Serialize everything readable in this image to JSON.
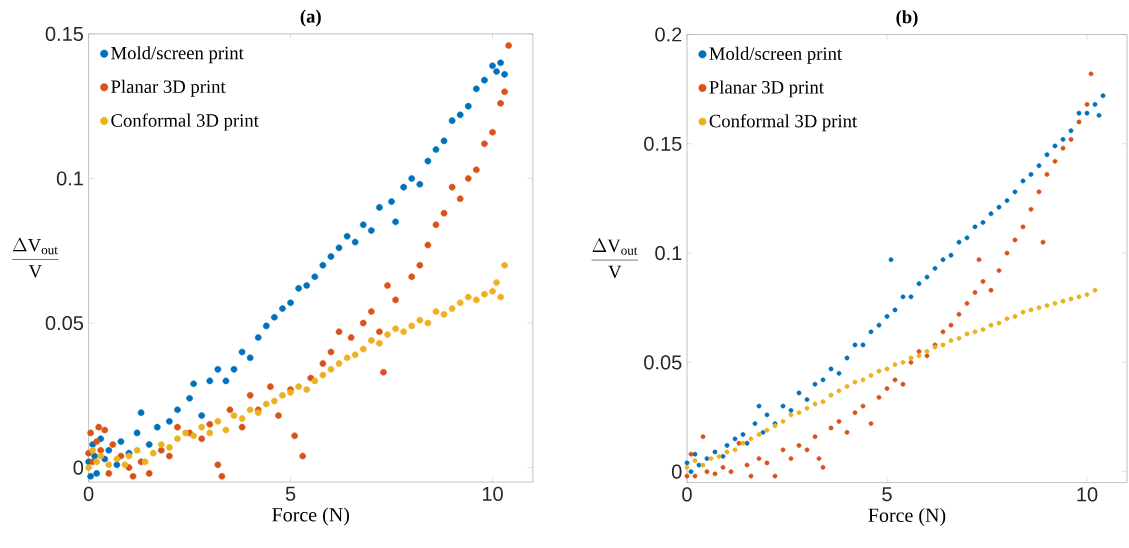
{
  "chart_data": [
    {
      "type": "scatter",
      "title": "(a)",
      "xlabel": "Force (N)",
      "ylabel": "\\frac{\\Delta \\mathrm{V}_{\\mathrm{out}}}{\\mathrm{V}}",
      "xlim": [
        0,
        11
      ],
      "ylim": [
        -0.005,
        0.15
      ],
      "xticks": [
        0,
        5,
        10
      ],
      "yticks": [
        0,
        0.05,
        0.1,
        0.15
      ],
      "legend": "top left",
      "marker": "circle",
      "series": [
        {
          "name": "Mold/screen print",
          "color": "#0072bd",
          "x": [
            0.0,
            0.05,
            0.1,
            0.15,
            0.2,
            0.3,
            0.4,
            0.5,
            0.7,
            0.8,
            1.0,
            1.2,
            1.3,
            1.5,
            1.7,
            2.0,
            2.2,
            2.5,
            2.6,
            2.8,
            3.0,
            3.2,
            3.4,
            3.6,
            3.8,
            4.0,
            4.2,
            4.4,
            4.6,
            4.8,
            5.0,
            5.2,
            5.4,
            5.6,
            5.8,
            6.0,
            6.2,
            6.4,
            6.6,
            6.8,
            7.0,
            7.2,
            7.5,
            7.6,
            7.8,
            8.0,
            8.2,
            8.4,
            8.6,
            8.8,
            9.0,
            9.2,
            9.4,
            9.6,
            9.8,
            10.0,
            10.1,
            10.2,
            10.3
          ],
          "values": [
            0.002,
            -0.003,
            0.008,
            0.004,
            -0.002,
            0.01,
            0.003,
            0.006,
            0.001,
            0.009,
            0.005,
            0.012,
            0.019,
            0.008,
            0.014,
            0.016,
            0.02,
            0.024,
            0.029,
            0.018,
            0.03,
            0.034,
            0.03,
            0.034,
            0.04,
            0.038,
            0.045,
            0.049,
            0.052,
            0.055,
            0.057,
            0.062,
            0.063,
            0.066,
            0.07,
            0.073,
            0.076,
            0.08,
            0.078,
            0.084,
            0.082,
            0.09,
            0.092,
            0.085,
            0.097,
            0.1,
            0.098,
            0.106,
            0.11,
            0.113,
            0.12,
            0.122,
            0.125,
            0.131,
            0.134,
            0.139,
            0.137,
            0.14,
            0.136
          ]
        },
        {
          "name": "Planar 3D print",
          "color": "#d95319",
          "x": [
            0.0,
            0.05,
            0.1,
            0.2,
            0.25,
            0.3,
            0.4,
            0.5,
            0.6,
            0.8,
            1.0,
            1.1,
            1.3,
            1.5,
            1.8,
            2.0,
            2.2,
            2.5,
            2.8,
            3.0,
            3.2,
            3.3,
            3.5,
            3.8,
            4.0,
            4.2,
            4.5,
            4.7,
            5.0,
            5.1,
            5.3,
            5.5,
            5.8,
            6.0,
            6.2,
            6.5,
            6.8,
            7.0,
            7.2,
            7.3,
            7.4,
            7.6,
            8.0,
            8.2,
            8.4,
            8.6,
            8.8,
            9.0,
            9.2,
            9.4,
            9.6,
            9.8,
            10.0,
            10.2,
            10.3,
            10.4
          ],
          "values": [
            0.005,
            0.012,
            0.002,
            0.009,
            0.014,
            0.006,
            0.013,
            -0.002,
            0.008,
            0.004,
            0.0,
            -0.003,
            0.002,
            -0.002,
            0.006,
            0.004,
            0.014,
            0.012,
            0.01,
            0.015,
            0.001,
            -0.003,
            0.02,
            0.014,
            0.025,
            0.02,
            0.028,
            0.018,
            0.027,
            0.011,
            0.004,
            0.031,
            0.036,
            0.04,
            0.047,
            0.045,
            0.05,
            0.054,
            0.047,
            0.033,
            0.063,
            0.058,
            0.066,
            0.07,
            0.077,
            0.084,
            0.088,
            0.097,
            0.093,
            0.1,
            0.103,
            0.112,
            0.116,
            0.126,
            0.13,
            0.146
          ]
        },
        {
          "name": "Conformal 3D print",
          "color": "#edb120",
          "x": [
            0.0,
            0.1,
            0.2,
            0.3,
            0.5,
            0.7,
            0.9,
            1.0,
            1.2,
            1.4,
            1.6,
            1.8,
            2.0,
            2.2,
            2.4,
            2.6,
            2.8,
            3.0,
            3.2,
            3.4,
            3.6,
            3.8,
            4.0,
            4.2,
            4.4,
            4.6,
            4.8,
            5.0,
            5.2,
            5.4,
            5.6,
            5.8,
            6.0,
            6.2,
            6.4,
            6.6,
            6.8,
            7.0,
            7.2,
            7.4,
            7.6,
            7.8,
            8.0,
            8.2,
            8.4,
            8.6,
            8.8,
            9.0,
            9.2,
            9.4,
            9.6,
            9.8,
            10.0,
            10.1,
            10.2,
            10.3
          ],
          "values": [
            0.0,
            0.006,
            0.002,
            0.004,
            0.001,
            0.003,
            0.001,
            0.004,
            0.006,
            0.002,
            0.005,
            0.008,
            0.007,
            0.01,
            0.012,
            0.011,
            0.014,
            0.012,
            0.016,
            0.013,
            0.018,
            0.017,
            0.02,
            0.019,
            0.022,
            0.023,
            0.025,
            0.026,
            0.028,
            0.027,
            0.03,
            0.032,
            0.034,
            0.036,
            0.038,
            0.039,
            0.041,
            0.044,
            0.043,
            0.046,
            0.048,
            0.047,
            0.049,
            0.051,
            0.05,
            0.054,
            0.053,
            0.055,
            0.057,
            0.059,
            0.058,
            0.06,
            0.061,
            0.064,
            0.059,
            0.07
          ]
        }
      ]
    },
    {
      "type": "scatter",
      "title": "(b)",
      "xlabel": "Force (N)",
      "ylabel": "\\frac{\\Delta \\mathrm{V}_{\\mathrm{out}}}{\\mathrm{V}}",
      "xlim": [
        0,
        11
      ],
      "ylim": [
        -0.005,
        0.2
      ],
      "xticks": [
        0,
        5,
        10
      ],
      "yticks": [
        0,
        0.05,
        0.1,
        0.15,
        0.2
      ],
      "legend": "top left",
      "marker": "circle",
      "series": [
        {
          "name": "Mold/screen print",
          "color": "#0072bd",
          "x": [
            0.0,
            0.1,
            0.2,
            0.3,
            0.5,
            0.7,
            0.9,
            1.0,
            1.2,
            1.4,
            1.5,
            1.7,
            1.8,
            1.9,
            2.0,
            2.2,
            2.4,
            2.6,
            2.8,
            3.0,
            3.2,
            3.4,
            3.6,
            3.8,
            4.0,
            4.2,
            4.4,
            4.6,
            4.8,
            5.0,
            5.1,
            5.2,
            5.4,
            5.6,
            5.8,
            6.0,
            6.2,
            6.4,
            6.6,
            6.8,
            7.0,
            7.2,
            7.4,
            7.6,
            7.8,
            8.0,
            8.2,
            8.4,
            8.6,
            8.8,
            9.0,
            9.2,
            9.4,
            9.6,
            9.8,
            10.0,
            10.2,
            10.3,
            10.4
          ],
          "values": [
            0.004,
            0.0,
            0.008,
            0.003,
            0.006,
            0.009,
            0.007,
            0.012,
            0.015,
            0.017,
            0.013,
            0.022,
            0.03,
            0.018,
            0.026,
            0.022,
            0.03,
            0.028,
            0.036,
            0.033,
            0.04,
            0.042,
            0.047,
            0.045,
            0.052,
            0.058,
            0.058,
            0.064,
            0.067,
            0.071,
            0.097,
            0.074,
            0.08,
            0.08,
            0.086,
            0.089,
            0.093,
            0.097,
            0.099,
            0.105,
            0.107,
            0.112,
            0.114,
            0.118,
            0.121,
            0.124,
            0.128,
            0.133,
            0.136,
            0.14,
            0.145,
            0.149,
            0.152,
            0.156,
            0.164,
            0.164,
            0.168,
            0.163,
            0.172
          ]
        },
        {
          "name": "Planar 3D print",
          "color": "#d95319",
          "x": [
            0.0,
            0.1,
            0.2,
            0.4,
            0.5,
            0.7,
            0.9,
            1.1,
            1.3,
            1.5,
            1.6,
            1.8,
            2.0,
            2.2,
            2.4,
            2.6,
            2.8,
            3.0,
            3.2,
            3.3,
            3.4,
            3.6,
            3.8,
            4.0,
            4.2,
            4.4,
            4.6,
            4.8,
            5.0,
            5.2,
            5.4,
            5.6,
            5.8,
            6.0,
            6.2,
            6.4,
            6.6,
            6.8,
            7.0,
            7.2,
            7.3,
            7.4,
            7.6,
            7.8,
            8.0,
            8.2,
            8.4,
            8.6,
            8.8,
            8.9,
            9.0,
            9.2,
            9.4,
            9.6,
            9.8,
            10.0,
            10.1
          ],
          "values": [
            -0.002,
            0.008,
            -0.002,
            0.016,
            0.0,
            -0.001,
            0.002,
            0.0,
            0.013,
            0.003,
            -0.002,
            0.006,
            0.004,
            -0.002,
            0.01,
            0.006,
            0.012,
            0.01,
            0.016,
            0.006,
            0.002,
            0.02,
            0.023,
            0.018,
            0.027,
            0.03,
            0.022,
            0.034,
            0.038,
            0.042,
            0.04,
            0.05,
            0.055,
            0.053,
            0.058,
            0.064,
            0.067,
            0.072,
            0.077,
            0.082,
            0.097,
            0.087,
            0.083,
            0.092,
            0.1,
            0.106,
            0.112,
            0.12,
            0.128,
            0.105,
            0.136,
            0.142,
            0.148,
            0.152,
            0.16,
            0.168,
            0.182
          ]
        },
        {
          "name": "Conformal 3D print",
          "color": "#edb120",
          "x": [
            0.0,
            0.2,
            0.4,
            0.6,
            0.8,
            1.0,
            1.2,
            1.4,
            1.6,
            1.8,
            2.0,
            2.2,
            2.4,
            2.6,
            2.8,
            3.0,
            3.2,
            3.4,
            3.6,
            3.8,
            4.0,
            4.2,
            4.4,
            4.6,
            4.8,
            5.0,
            5.2,
            5.4,
            5.6,
            5.8,
            6.0,
            6.2,
            6.4,
            6.6,
            6.8,
            7.0,
            7.2,
            7.4,
            7.6,
            7.8,
            8.0,
            8.2,
            8.4,
            8.6,
            8.8,
            9.0,
            9.2,
            9.4,
            9.6,
            9.8,
            10.0,
            10.2
          ],
          "values": [
            0.002,
            0.005,
            0.003,
            0.006,
            0.007,
            0.009,
            0.01,
            0.013,
            0.015,
            0.017,
            0.019,
            0.021,
            0.023,
            0.026,
            0.027,
            0.029,
            0.031,
            0.032,
            0.035,
            0.037,
            0.039,
            0.041,
            0.042,
            0.044,
            0.046,
            0.047,
            0.049,
            0.05,
            0.052,
            0.053,
            0.055,
            0.057,
            0.058,
            0.06,
            0.061,
            0.063,
            0.064,
            0.065,
            0.067,
            0.068,
            0.07,
            0.071,
            0.073,
            0.074,
            0.075,
            0.076,
            0.077,
            0.078,
            0.079,
            0.08,
            0.081,
            0.083
          ]
        }
      ]
    }
  ]
}
